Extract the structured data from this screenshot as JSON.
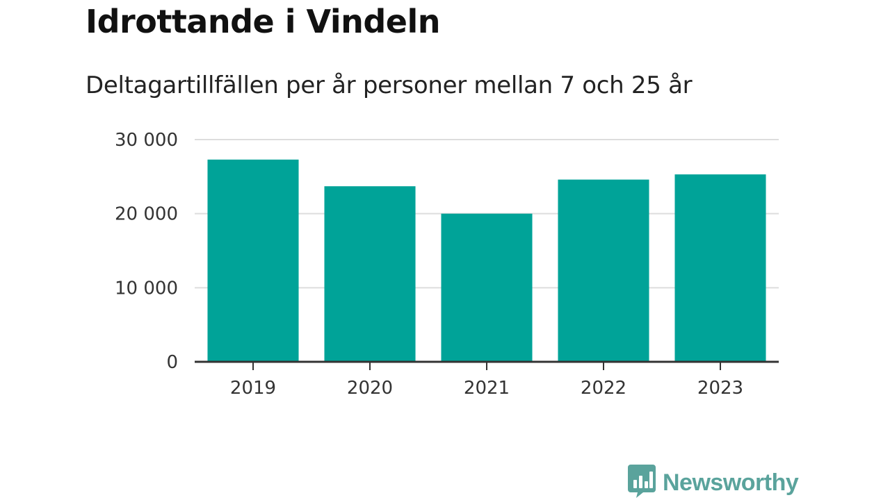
{
  "header": {
    "title": "Idrottande i Vindeln",
    "subtitle": "Deltagartillfällen per år personer mellan 7 och 25 år"
  },
  "brand": {
    "name": "Newsworthy",
    "icon": "bar-chart-speech-bubble-icon",
    "color": "#5aa39c"
  },
  "chart_data": {
    "type": "bar",
    "categories": [
      "2019",
      "2020",
      "2021",
      "2022",
      "2023"
    ],
    "values": [
      27300,
      23700,
      20000,
      24600,
      25300
    ],
    "ylim": [
      0,
      30000
    ],
    "yticks": [
      0,
      10000,
      20000,
      30000
    ],
    "ytick_labels": [
      "0",
      "10 000",
      "20 000",
      "30 000"
    ],
    "grid": true,
    "legend": "none",
    "bar_color": "#00a398"
  }
}
